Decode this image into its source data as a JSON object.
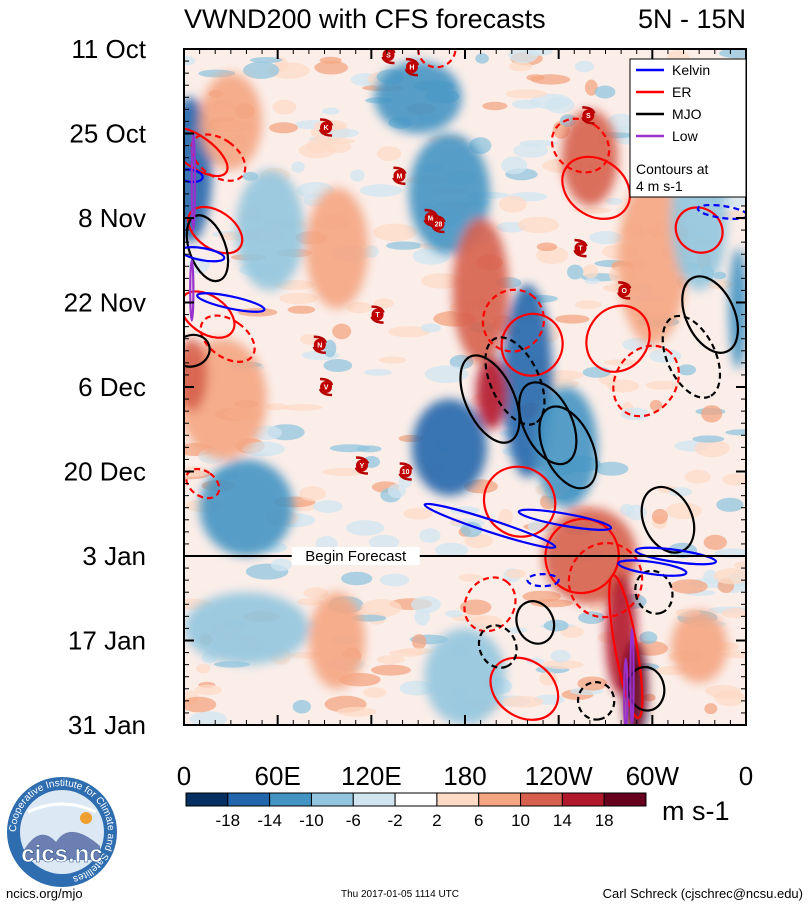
{
  "chart_data": {
    "type": "heatmap",
    "title": "VWND200 with CFS forecasts",
    "region": "5N - 15N",
    "x_ticks": [
      "0",
      "60E",
      "120E",
      "180",
      "120W",
      "60W",
      "0"
    ],
    "x_range_deg": [
      0,
      360
    ],
    "y_ticks": [
      "11 Oct",
      "25 Oct",
      "8 Nov",
      "22 Nov",
      "6 Dec",
      "20 Dec",
      "3 Jan",
      "17 Jan",
      "31 Jan"
    ],
    "y_range_days": [
      0,
      112
    ],
    "forecast_start_day": 84,
    "forecast_label": "Begin Forecast",
    "colorbar": {
      "labels": [
        "-18",
        "-14",
        "-10",
        "-6",
        "-2",
        "2",
        "6",
        "10",
        "14",
        "18"
      ],
      "colors": [
        "#053061",
        "#2166ac",
        "#4393c3",
        "#92c5de",
        "#d1e5f0",
        "#ffffff",
        "#fddbc7",
        "#f4a582",
        "#d6604d",
        "#b2182b",
        "#67001f"
      ],
      "units": "m s-1"
    },
    "legend": {
      "items": [
        {
          "label": "Kelvin",
          "color": "#0000ff"
        },
        {
          "label": "ER",
          "color": "#ff0000"
        },
        {
          "label": "MJO",
          "color": "#000000"
        },
        {
          "label": "Low",
          "color": "#9932cc"
        }
      ],
      "note_line1": "Contours at",
      "note_line2": "4 m s-1"
    },
    "storms": [
      {
        "label": "S",
        "lon": 131,
        "day": 1
      },
      {
        "label": "H",
        "lon": 146,
        "day": 3
      },
      {
        "label": "K",
        "lon": 91,
        "day": 13
      },
      {
        "label": "S",
        "lon": 259,
        "day": 11
      },
      {
        "label": "M",
        "lon": 138,
        "day": 21
      },
      {
        "label": "M",
        "lon": 158,
        "day": 28
      },
      {
        "label": "28",
        "lon": 163,
        "day": 29
      },
      {
        "label": "T",
        "lon": 254,
        "day": 33
      },
      {
        "label": "O",
        "lon": 282,
        "day": 40
      },
      {
        "label": "T",
        "lon": 124,
        "day": 44
      },
      {
        "label": "N",
        "lon": 87,
        "day": 49
      },
      {
        "label": "V",
        "lon": 91,
        "day": 56
      },
      {
        "label": "Y",
        "lon": 114,
        "day": 69
      },
      {
        "label": "10",
        "lon": 142,
        "day": 70
      }
    ],
    "anomaly_regions": [
      {
        "lon": 4,
        "day": 20,
        "rlon": 14,
        "rday": 12,
        "v": -16
      },
      {
        "lon": 30,
        "day": 12,
        "rlon": 20,
        "rday": 8,
        "v": 10
      },
      {
        "lon": 55,
        "day": 30,
        "rlon": 22,
        "rday": 10,
        "v": -8
      },
      {
        "lon": 98,
        "day": 33,
        "rlon": 20,
        "rday": 10,
        "v": 8
      },
      {
        "lon": 150,
        "day": 8,
        "rlon": 28,
        "rday": 6,
        "v": -10
      },
      {
        "lon": 170,
        "day": 24,
        "rlon": 26,
        "rday": 10,
        "v": -10
      },
      {
        "lon": 190,
        "day": 40,
        "rlon": 18,
        "rday": 12,
        "v": 12
      },
      {
        "lon": 220,
        "day": 55,
        "rlon": 16,
        "rday": 16,
        "v": -16
      },
      {
        "lon": 197,
        "day": 57,
        "rlon": 10,
        "rday": 6,
        "v": 18
      },
      {
        "lon": 245,
        "day": 66,
        "rlon": 20,
        "rday": 10,
        "v": -10
      },
      {
        "lon": 260,
        "day": 18,
        "rlon": 18,
        "rday": 8,
        "v": 14
      },
      {
        "lon": 300,
        "day": 35,
        "rlon": 22,
        "rday": 14,
        "v": 10
      },
      {
        "lon": 330,
        "day": 28,
        "rlon": 18,
        "rday": 12,
        "v": -8
      },
      {
        "lon": 25,
        "day": 58,
        "rlon": 28,
        "rday": 10,
        "v": 8
      },
      {
        "lon": 40,
        "day": 76,
        "rlon": 30,
        "rday": 8,
        "v": -12
      },
      {
        "lon": 170,
        "day": 66,
        "rlon": 24,
        "rday": 8,
        "v": -14
      },
      {
        "lon": 260,
        "day": 84,
        "rlon": 30,
        "rday": 8,
        "v": 14
      },
      {
        "lon": 280,
        "day": 97,
        "rlon": 10,
        "rday": 10,
        "v": 18
      },
      {
        "lon": 289,
        "day": 106,
        "rlon": 8,
        "rday": 8,
        "v": 20
      },
      {
        "lon": 98,
        "day": 98,
        "rlon": 18,
        "rday": 8,
        "v": 10
      },
      {
        "lon": 40,
        "day": 96,
        "rlon": 40,
        "rday": 6,
        "v": -6
      },
      {
        "lon": 180,
        "day": 104,
        "rlon": 26,
        "rday": 8,
        "v": -8
      },
      {
        "lon": 330,
        "day": 99,
        "rlon": 18,
        "rday": 6,
        "v": 10
      },
      {
        "lon": 5,
        "day": 54,
        "rlon": 10,
        "rday": 6,
        "v": 14
      },
      {
        "lon": 355,
        "day": 43,
        "rlon": 6,
        "rday": 10,
        "v": -10
      }
    ],
    "contours": [
      {
        "wave": "ER",
        "lon": 8,
        "day": 17,
        "rlon": 10,
        "rday": 6,
        "angle": -55,
        "dash": false
      },
      {
        "wave": "ER",
        "lon": 22,
        "day": 18,
        "rlon": 12,
        "rday": 5,
        "angle": -55,
        "dash": true
      },
      {
        "wave": "ER",
        "lon": 20,
        "day": 30,
        "rlon": 12,
        "rday": 5,
        "angle": -55,
        "dash": false
      },
      {
        "wave": "ER",
        "lon": 15,
        "day": 44,
        "rlon": 12,
        "rday": 5,
        "angle": -55,
        "dash": false
      },
      {
        "wave": "ER",
        "lon": 28,
        "day": 48,
        "rlon": 12,
        "rday": 5,
        "angle": -55,
        "dash": true
      },
      {
        "wave": "ER",
        "lon": 12,
        "day": 72,
        "rlon": 8,
        "rday": 3,
        "angle": -55,
        "dash": true
      },
      {
        "wave": "ER",
        "lon": 162,
        "day": 0,
        "rlon": 12,
        "rday": 3,
        "angle": -25,
        "dash": true
      },
      {
        "wave": "ER",
        "lon": 254,
        "day": 16,
        "rlon": 16,
        "rday": 5,
        "angle": -55,
        "dash": true
      },
      {
        "wave": "ER",
        "lon": 264,
        "day": 23,
        "rlon": 18,
        "rday": 6,
        "angle": -55,
        "dash": false
      },
      {
        "wave": "ER",
        "lon": 223,
        "day": 49,
        "rlon": 20,
        "rday": 5,
        "angle": -55,
        "dash": false
      },
      {
        "wave": "ER",
        "lon": 211,
        "day": 45,
        "rlon": 20,
        "rday": 5,
        "angle": -55,
        "dash": true
      },
      {
        "wave": "ER",
        "lon": 278,
        "day": 48,
        "rlon": 22,
        "rday": 5,
        "angle": -55,
        "dash": false
      },
      {
        "wave": "ER",
        "lon": 296,
        "day": 55,
        "rlon": 24,
        "rday": 5,
        "angle": -55,
        "dash": true
      },
      {
        "wave": "ER",
        "lon": 330,
        "day": 30,
        "rlon": 14,
        "rday": 4,
        "angle": -55,
        "dash": false
      },
      {
        "wave": "ER",
        "lon": 215,
        "day": 75,
        "rlon": 22,
        "rday": 6,
        "angle": -55,
        "dash": false
      },
      {
        "wave": "ER",
        "lon": 255,
        "day": 84,
        "rlon": 24,
        "rday": 6,
        "angle": -55,
        "dash": false
      },
      {
        "wave": "ER",
        "lon": 270,
        "day": 88,
        "rlon": 24,
        "rday": 6,
        "angle": -55,
        "dash": true
      },
      {
        "wave": "ER",
        "lon": 196,
        "day": 92,
        "rlon": 18,
        "rday": 4,
        "angle": -55,
        "dash": true
      },
      {
        "wave": "ER",
        "lon": 218,
        "day": 106,
        "rlon": 18,
        "rday": 6,
        "angle": -55,
        "dash": false
      },
      {
        "wave": "ER",
        "lon": 283,
        "day": 99,
        "rlon": 7,
        "rday": 12,
        "angle": -10,
        "dash": false
      },
      {
        "wave": "MJO",
        "lon": 15,
        "day": 33,
        "rlon": 22,
        "rday": 3,
        "angle": 70,
        "dash": false
      },
      {
        "wave": "MJO",
        "lon": 5,
        "day": 50,
        "rlon": 10,
        "rday": 3,
        "angle": 70,
        "dash": false
      },
      {
        "wave": "MJO",
        "lon": 196,
        "day": 58,
        "rlon": 30,
        "rday": 4,
        "angle": 65,
        "dash": false
      },
      {
        "wave": "MJO",
        "lon": 212,
        "day": 55,
        "rlon": 30,
        "rday": 4,
        "angle": 65,
        "dash": true
      },
      {
        "wave": "MJO",
        "lon": 233,
        "day": 62,
        "rlon": 28,
        "rday": 4,
        "angle": 65,
        "dash": false
      },
      {
        "wave": "MJO",
        "lon": 246,
        "day": 66,
        "rlon": 28,
        "rday": 4,
        "angle": 65,
        "dash": false
      },
      {
        "wave": "MJO",
        "lon": 337,
        "day": 44,
        "rlon": 26,
        "rday": 4,
        "angle": 65,
        "dash": false
      },
      {
        "wave": "MJO",
        "lon": 325,
        "day": 51,
        "rlon": 28,
        "rday": 4,
        "angle": 65,
        "dash": true
      },
      {
        "wave": "MJO",
        "lon": 310,
        "day": 78,
        "rlon": 22,
        "rday": 4,
        "angle": 65,
        "dash": false
      },
      {
        "wave": "MJO",
        "lon": 225,
        "day": 95,
        "rlon": 14,
        "rday": 3,
        "angle": 65,
        "dash": false
      },
      {
        "wave": "MJO",
        "lon": 201,
        "day": 99,
        "rlon": 14,
        "rday": 3,
        "angle": 65,
        "dash": true
      },
      {
        "wave": "MJO",
        "lon": 296,
        "day": 106,
        "rlon": 14,
        "rday": 3,
        "angle": 80,
        "dash": false
      },
      {
        "wave": "MJO",
        "lon": 264,
        "day": 108,
        "rlon": 12,
        "rday": 3,
        "angle": 80,
        "dash": true
      },
      {
        "wave": "MJO",
        "lon": 301,
        "day": 90,
        "rlon": 14,
        "rday": 3,
        "angle": 70,
        "dash": true
      },
      {
        "wave": "Kelvin",
        "lon": 30,
        "day": 42,
        "rlon": 22,
        "rday": 1,
        "angle": 12,
        "dash": false
      },
      {
        "wave": "Kelvin",
        "lon": 12,
        "day": 34,
        "rlon": 14,
        "rday": 1,
        "angle": 10,
        "dash": false
      },
      {
        "wave": "Kelvin",
        "lon": 196,
        "day": 79,
        "rlon": 44,
        "rday": 1,
        "angle": 18,
        "dash": false
      },
      {
        "wave": "Kelvin",
        "lon": 244,
        "day": 78,
        "rlon": 30,
        "rday": 1,
        "angle": 10,
        "dash": false
      },
      {
        "wave": "Kelvin",
        "lon": 315,
        "day": 84,
        "rlon": 26,
        "rday": 1,
        "angle": 8,
        "dash": false
      },
      {
        "wave": "Kelvin",
        "lon": 300,
        "day": 86,
        "rlon": 22,
        "rday": 1,
        "angle": 8,
        "dash": false
      },
      {
        "wave": "Kelvin",
        "lon": 345,
        "day": 27,
        "rlon": 16,
        "rday": 1,
        "angle": 8,
        "dash": true
      },
      {
        "wave": "Kelvin",
        "lon": 230,
        "day": 88,
        "rlon": 10,
        "rday": 1,
        "angle": 0,
        "dash": true
      },
      {
        "wave": "Kelvin",
        "lon": 4,
        "day": 21,
        "rlon": 8,
        "rday": 1,
        "angle": 8,
        "dash": false
      },
      {
        "wave": "Low",
        "lon": 6,
        "day": 22,
        "rlon": 1,
        "rday": 8,
        "angle": 0,
        "dash": false
      },
      {
        "wave": "Low",
        "lon": 5,
        "day": 40,
        "rlon": 1,
        "rday": 5,
        "angle": 0,
        "dash": false
      },
      {
        "wave": "Low",
        "lon": 287,
        "day": 104,
        "rlon": 1,
        "rday": 8,
        "angle": 0,
        "dash": false
      },
      {
        "wave": "Low",
        "lon": 283,
        "day": 107,
        "rlon": 1,
        "rday": 6,
        "angle": 0,
        "dash": false
      }
    ]
  },
  "footer": {
    "left": "ncics.org/mjo",
    "center": "Thu 2017-01-05 1114 UTC",
    "right": "Carl Schreck (cjschrec@ncsu.edu)",
    "logo_text": "cics.nc",
    "logo_ring": "Cooperative Institute for Climate and Satellites"
  }
}
